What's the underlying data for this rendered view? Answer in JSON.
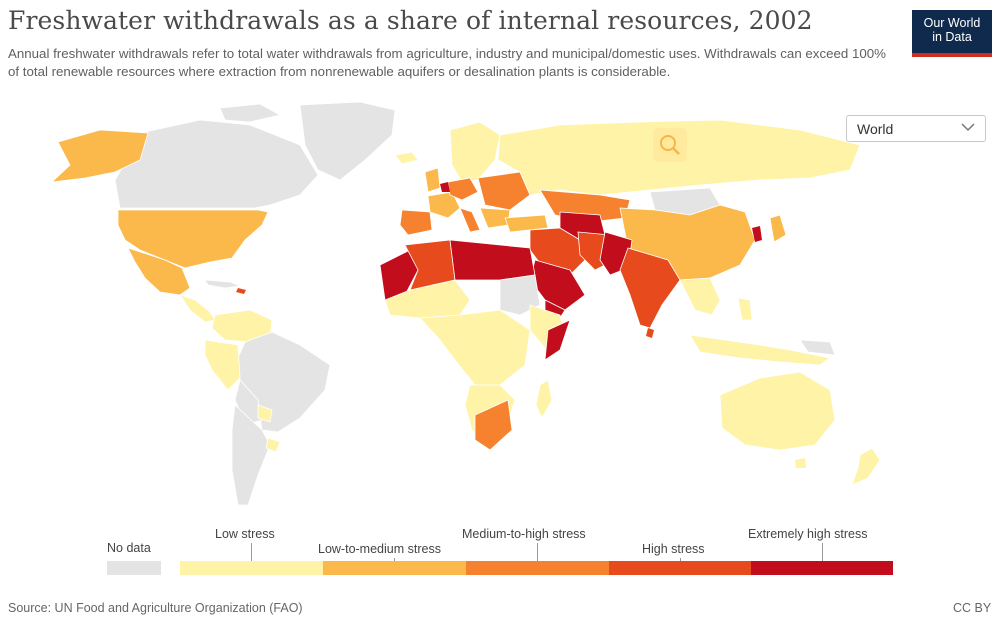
{
  "header": {
    "title": "Freshwater withdrawals as a share of internal resources, 2002",
    "subtitle": "Annual freshwater withdrawals refer to total water withdrawals from agriculture, industry and municipal/domestic uses. Withdrawals can exceed 100% of total renewable resources where extraction from nonrenewable aquifers or desalination plants is considerable.",
    "logo_line1": "Our World",
    "logo_line2": "in Data"
  },
  "region_select": {
    "value": "World",
    "icon": "chevron-down-icon"
  },
  "map": {
    "zoom_icon": "magnifier-icon"
  },
  "legend": {
    "no_data": {
      "label": "No data",
      "color": "#e4e4e4"
    },
    "categories": [
      {
        "label": "Low stress",
        "color": "#fff3a8"
      },
      {
        "label": "Low-to-medium stress",
        "color": "#fbb84b"
      },
      {
        "label": "Medium-to-high stress",
        "color": "#f6822f"
      },
      {
        "label": "High stress",
        "color": "#e74a1c"
      },
      {
        "label": "Extremely high stress",
        "color": "#c20d1c"
      }
    ]
  },
  "footer": {
    "source": "Source: UN Food and Agriculture Organization (FAO)",
    "license": "CC BY"
  }
}
